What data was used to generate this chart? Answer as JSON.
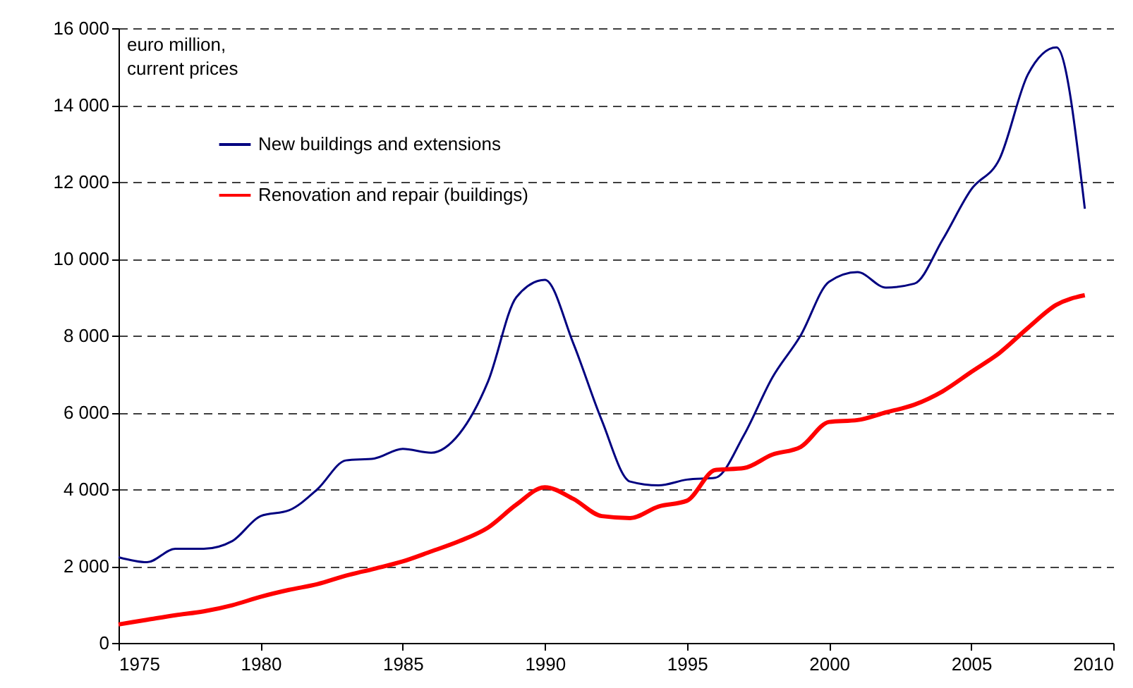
{
  "chart_data": {
    "type": "line",
    "ylabel": "euro million, current prices",
    "x": [
      1975,
      1976,
      1977,
      1978,
      1979,
      1980,
      1981,
      1982,
      1983,
      1984,
      1985,
      1986,
      1987,
      1988,
      1989,
      1990,
      1991,
      1992,
      1993,
      1994,
      1995,
      1996,
      1997,
      1998,
      1999,
      2000,
      2001,
      2002,
      2003,
      2004,
      2005,
      2006,
      2007,
      2008,
      2009
    ],
    "series": [
      {
        "name": "New buildings and extensions",
        "color": "#000080",
        "values": [
          2230,
          2100,
          2450,
          2450,
          2650,
          3300,
          3450,
          4000,
          4750,
          4800,
          5050,
          4950,
          5450,
          6800,
          9000,
          9450,
          7800,
          5800,
          4200,
          4100,
          4250,
          4300,
          5400,
          6900,
          8000,
          9400,
          9650,
          9250,
          9350,
          10500,
          11800,
          12600,
          14800,
          15500,
          11300
        ]
      },
      {
        "name": "Renovation and repair (buildings)",
        "color": "#ff0000",
        "values": [
          480,
          600,
          720,
          820,
          980,
          1200,
          1380,
          1530,
          1750,
          1930,
          2120,
          2380,
          2650,
          3000,
          3600,
          4050,
          3750,
          3300,
          3250,
          3550,
          3700,
          4500,
          4550,
          4900,
          5100,
          5750,
          5800,
          6000,
          6200,
          6550,
          7050,
          7550,
          8200,
          8800,
          9050
        ]
      }
    ],
    "xlim": [
      1975,
      2010
    ],
    "xticks": [
      1975,
      1980,
      1985,
      1990,
      1995,
      2000,
      2005,
      2010
    ],
    "ylim": [
      0,
      16000
    ],
    "yticks": [
      0,
      {
        "value": 2000,
        "label": "2 000"
      },
      {
        "value": 4000,
        "label": "4 000"
      },
      {
        "value": 6000,
        "label": "6 000"
      },
      {
        "value": 8000,
        "label": "8 000"
      },
      {
        "value": 10000,
        "label": "10 000"
      },
      {
        "value": 12000,
        "label": "12 000"
      },
      {
        "value": 14000,
        "label": "14 000"
      },
      {
        "value": 16000,
        "label": "16 000"
      }
    ],
    "grid": "y",
    "legend": "top left",
    "marker": "none",
    "line_style": "solid"
  }
}
